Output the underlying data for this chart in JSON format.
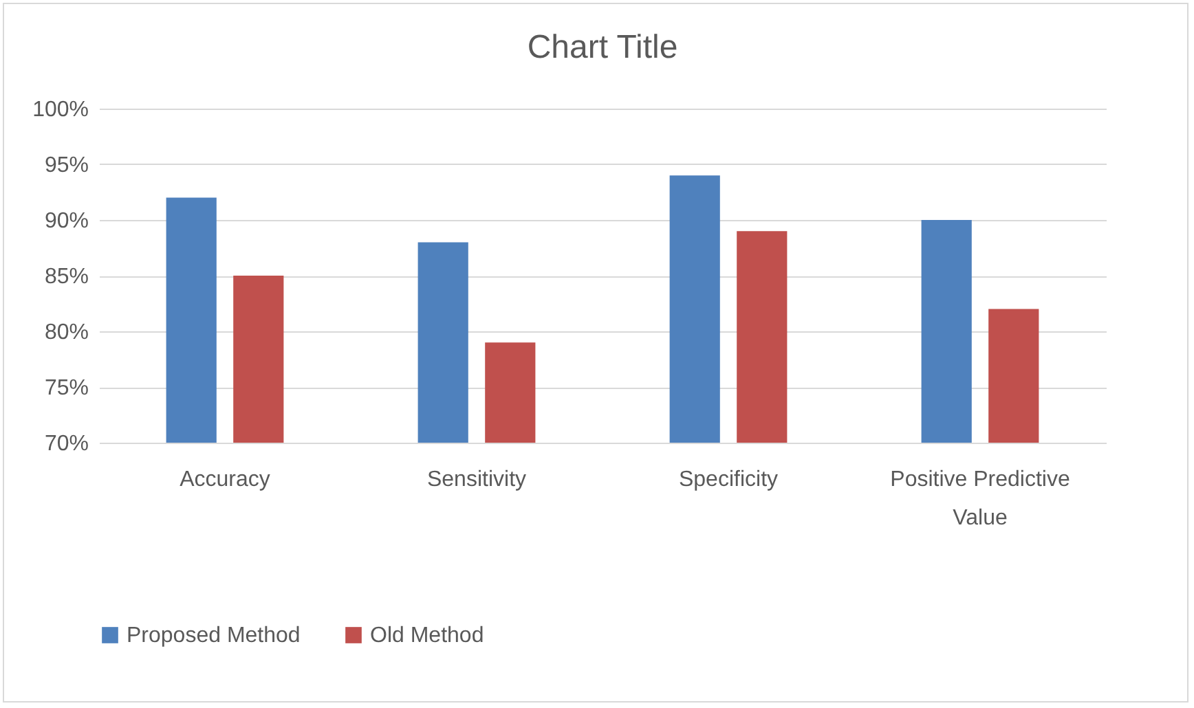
{
  "chart_data": {
    "type": "bar",
    "title": "Chart Title",
    "categories": [
      "Accuracy",
      "Sensitivity",
      "Specificity",
      "Positive Predictive Value"
    ],
    "series": [
      {
        "name": "Proposed Method",
        "color": "#4f81bd",
        "values": [
          92,
          88,
          94,
          90
        ]
      },
      {
        "name": "Old Method",
        "color": "#c0504d",
        "values": [
          85,
          79,
          89,
          82
        ]
      }
    ],
    "ylim": [
      70,
      100
    ],
    "yticks": [
      {
        "value": 70,
        "label": "70%"
      },
      {
        "value": 75,
        "label": "75%"
      },
      {
        "value": 80,
        "label": "80%"
      },
      {
        "value": 85,
        "label": "85%"
      },
      {
        "value": 90,
        "label": "90%"
      },
      {
        "value": 95,
        "label": "95%"
      },
      {
        "value": 100,
        "label": "100%"
      }
    ],
    "grid": "y",
    "legend": "bottom"
  }
}
